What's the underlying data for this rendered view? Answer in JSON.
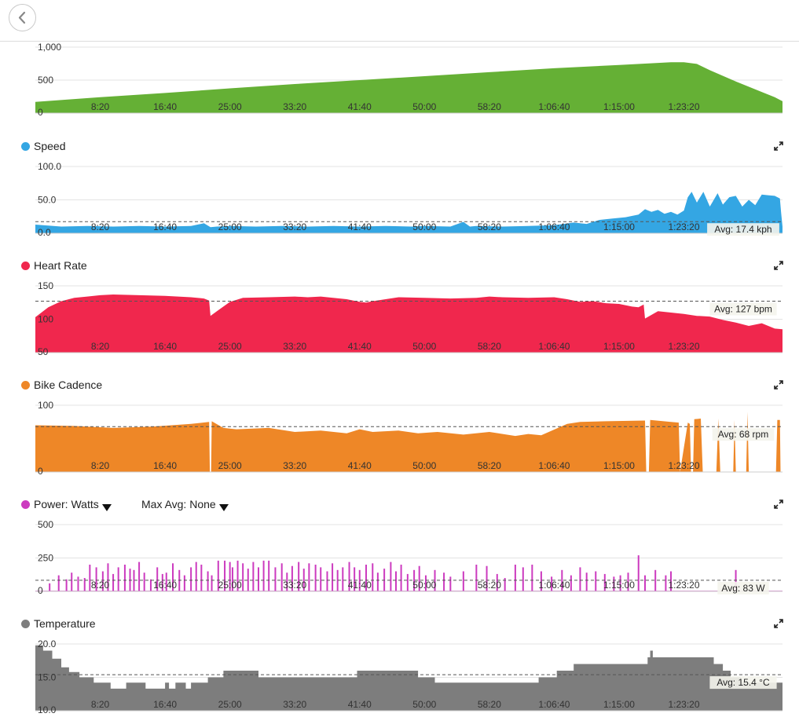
{
  "nav": {
    "back_icon": "chevron-left-icon"
  },
  "x_tick_labels": [
    "8:20",
    "16:40",
    "25:00",
    "33:20",
    "41:40",
    "50:00",
    "58:20",
    "1:06:40",
    "1:15:00",
    "1:23:20"
  ],
  "panels": {
    "elevation": {
      "expand_icon": ""
    },
    "speed": {
      "title": "Speed",
      "color": "#34a6e3",
      "expand_icon": "expand-icon"
    },
    "heart_rate": {
      "title": "Heart Rate",
      "color": "#f0274d",
      "expand_icon": "expand-icon"
    },
    "cadence": {
      "title": "Bike Cadence",
      "color": "#ee8727",
      "expand_icon": "expand-icon"
    },
    "power": {
      "title": "Power: Watts",
      "max_avg": "Max Avg: None",
      "color": "#cc3bbf",
      "expand_icon": "expand-icon"
    },
    "temperature": {
      "title": "Temperature",
      "color": "#7d7d7d",
      "expand_icon": "expand-icon"
    }
  },
  "chart_data": [
    {
      "id": "elevation",
      "type": "area",
      "color": "#65b035",
      "title": "",
      "xlabel": "",
      "ylabel": "",
      "x_unit": "seconds",
      "xlim": [
        0,
        5760
      ],
      "ylim": [
        0,
        1000
      ],
      "y_ticks": [
        "0",
        "500",
        "1,000"
      ],
      "x_tick_values": [
        500,
        1000,
        1500,
        2000,
        2500,
        3000,
        3500,
        4000,
        4500,
        5000
      ],
      "x_tick_labels": [
        "8:20",
        "16:40",
        "25:00",
        "33:20",
        "41:40",
        "50:00",
        "58:20",
        "1:06:40",
        "1:15:00",
        "1:23:20"
      ],
      "avg": null,
      "avg_label": "",
      "x": [
        0,
        500,
        1000,
        1500,
        2000,
        2500,
        3000,
        3500,
        4000,
        4500,
        4700,
        4900,
        5000,
        5100,
        5200,
        5400,
        5600,
        5700,
        5760
      ],
      "y": [
        170,
        240,
        305,
        375,
        440,
        500,
        560,
        620,
        680,
        730,
        750,
        770,
        770,
        745,
        650,
        480,
        320,
        240,
        180
      ]
    },
    {
      "id": "speed",
      "type": "area",
      "color": "#34a6e3",
      "title": "Speed",
      "xlabel": "",
      "ylabel": "",
      "x_unit": "seconds",
      "xlim": [
        0,
        5760
      ],
      "ylim": [
        0,
        100
      ],
      "y_ticks": [
        "0.0",
        "50.0",
        "100.0"
      ],
      "x_tick_values": [
        500,
        1000,
        1500,
        2000,
        2500,
        3000,
        3500,
        4000,
        4500,
        5000
      ],
      "x_tick_labels": [
        "8:20",
        "16:40",
        "25:00",
        "33:20",
        "41:40",
        "50:00",
        "58:20",
        "1:06:40",
        "1:15:00",
        "1:23:20"
      ],
      "avg": 17.4,
      "avg_label": "Avg: 17.4 kph",
      "x": [
        0,
        200,
        400,
        600,
        800,
        1000,
        1200,
        1300,
        1350,
        1400,
        1500,
        1700,
        1900,
        2100,
        2300,
        2500,
        2700,
        2900,
        3000,
        3200,
        3300,
        3350,
        3400,
        3600,
        3800,
        4000,
        4150,
        4250,
        4350,
        4450,
        4550,
        4650,
        4700,
        4750,
        4800,
        4850,
        4900,
        4950,
        5000,
        5030,
        5060,
        5100,
        5150,
        5200,
        5230,
        5260,
        5300,
        5350,
        5400,
        5450,
        5500,
        5550,
        5600,
        5650,
        5700,
        5740,
        5750,
        5760
      ],
      "y": [
        13,
        10,
        11,
        10,
        11,
        10,
        11,
        15,
        9,
        10,
        11,
        10,
        11,
        10,
        11,
        10,
        11,
        10,
        11,
        10,
        17,
        10,
        11,
        10,
        11,
        12,
        16,
        14,
        20,
        22,
        24,
        28,
        36,
        32,
        35,
        29,
        32,
        28,
        34,
        54,
        62,
        46,
        62,
        40,
        50,
        60,
        43,
        54,
        56,
        40,
        50,
        42,
        58,
        57,
        56,
        52,
        30,
        10
      ]
    },
    {
      "id": "heart_rate",
      "type": "area",
      "color": "#f0274d",
      "title": "Heart Rate",
      "xlabel": "",
      "ylabel": "",
      "x_unit": "seconds",
      "xlim": [
        0,
        5760
      ],
      "ylim": [
        50,
        150
      ],
      "y_ticks": [
        "50",
        "100",
        "150"
      ],
      "x_tick_values": [
        500,
        1000,
        1500,
        2000,
        2500,
        3000,
        3500,
        4000,
        4500,
        5000
      ],
      "x_tick_labels": [
        "8:20",
        "16:40",
        "25:00",
        "33:20",
        "41:40",
        "50:00",
        "58:20",
        "1:06:40",
        "1:15:00",
        "1:23:20"
      ],
      "avg": 127,
      "avg_label": "Avg: 127 bpm",
      "x": [
        0,
        100,
        200,
        300,
        400,
        500,
        600,
        800,
        1000,
        1100,
        1200,
        1300,
        1340,
        1350,
        1400,
        1500,
        1600,
        1800,
        2000,
        2100,
        2200,
        2400,
        2500,
        2550,
        2600,
        2700,
        2800,
        3000,
        3200,
        3400,
        3500,
        3600,
        3800,
        4000,
        4100,
        4200,
        4300,
        4400,
        4500,
        4600,
        4650,
        4690,
        4700,
        4800,
        4900,
        5000,
        5100,
        5200,
        5300,
        5400,
        5500,
        5600,
        5700,
        5760
      ],
      "y": [
        103,
        118,
        127,
        132,
        134,
        136,
        137,
        136,
        135,
        134,
        133,
        131,
        128,
        105,
        112,
        126,
        132,
        133,
        134,
        133,
        134,
        130,
        126,
        125,
        127,
        130,
        133,
        132,
        131,
        132,
        134,
        133,
        132,
        133,
        130,
        126,
        127,
        124,
        123,
        119,
        118,
        122,
        101,
        112,
        110,
        108,
        105,
        104,
        99,
        95,
        90,
        94,
        86,
        85
      ]
    },
    {
      "id": "cadence",
      "type": "area",
      "color": "#ee8727",
      "title": "Bike Cadence",
      "xlabel": "",
      "ylabel": "",
      "x_unit": "seconds",
      "xlim": [
        0,
        5760
      ],
      "ylim": [
        0,
        100
      ],
      "y_ticks": [
        "0",
        "100"
      ],
      "x_tick_values": [
        500,
        1000,
        1500,
        2000,
        2500,
        3000,
        3500,
        4000,
        4500,
        5000
      ],
      "x_tick_labels": [
        "8:20",
        "16:40",
        "25:00",
        "33:20",
        "41:40",
        "50:00",
        "58:20",
        "1:06:40",
        "1:15:00",
        "1:23:20"
      ],
      "avg": 68,
      "avg_label": "Avg: 68 rpm",
      "x": [
        0,
        300,
        600,
        900,
        1200,
        1340,
        1345,
        1355,
        1360,
        1450,
        1550,
        1800,
        2000,
        2200,
        2400,
        2500,
        2600,
        2800,
        2950,
        3100,
        3300,
        3500,
        3700,
        3800,
        3900,
        4100,
        4200,
        4400,
        4700,
        4710,
        4730,
        4740,
        4900,
        4960,
        4970,
        5030,
        5045,
        5055,
        5070,
        5080,
        5130,
        5145,
        5160,
        5250,
        5265,
        5280,
        5380,
        5390,
        5400,
        5480,
        5490,
        5500,
        5700,
        5710,
        5720,
        5740,
        5745,
        5760
      ],
      "y": [
        70,
        69,
        66,
        68,
        72,
        75,
        0,
        0,
        76,
        66,
        64,
        66,
        60,
        62,
        58,
        64,
        60,
        62,
        58,
        60,
        56,
        60,
        54,
        57,
        55,
        72,
        75,
        76,
        77,
        0,
        0,
        78,
        75,
        74,
        0,
        74,
        72,
        0,
        0,
        79,
        80,
        0,
        0,
        0,
        80,
        0,
        0,
        78,
        0,
        0,
        90,
        0,
        0,
        0,
        78,
        78,
        0,
        0
      ]
    },
    {
      "id": "power",
      "type": "area",
      "color": "#cc3bbf",
      "title": "Power: Watts",
      "xlabel": "",
      "ylabel": "",
      "x_unit": "seconds",
      "xlim": [
        0,
        5760
      ],
      "ylim": [
        0,
        500
      ],
      "y_ticks": [
        "0",
        "250",
        "500"
      ],
      "x_tick_values": [
        500,
        1000,
        1500,
        2000,
        2500,
        3000,
        3500,
        4000,
        4500,
        5000
      ],
      "x_tick_labels": [
        "8:20",
        "16:40",
        "25:00",
        "33:20",
        "41:40",
        "50:00",
        "58:20",
        "1:06:40",
        "1:15:00",
        "1:23:20"
      ],
      "avg": 83,
      "avg_label": "Avg: 83 W",
      "spikes_x": [
        110,
        180,
        240,
        280,
        330,
        380,
        420,
        470,
        520,
        560,
        600,
        640,
        690,
        730,
        760,
        800,
        840,
        890,
        940,
        980,
        1010,
        1060,
        1110,
        1150,
        1200,
        1240,
        1280,
        1330,
        1360,
        1410,
        1460,
        1500,
        1520,
        1560,
        1600,
        1640,
        1680,
        1720,
        1760,
        1800,
        1850,
        1900,
        1940,
        1980,
        2030,
        2070,
        2110,
        2160,
        2200,
        2250,
        2290,
        2330,
        2370,
        2420,
        2460,
        2500,
        2550,
        2600,
        2640,
        2690,
        2740,
        2780,
        2820,
        2870,
        2920,
        2960,
        3010,
        3080,
        3150,
        3200,
        3300,
        3400,
        3480,
        3560,
        3620,
        3700,
        3760,
        3830,
        3900,
        3980,
        4060,
        4130,
        4200,
        4250,
        4320,
        4390,
        4460,
        4510,
        4570,
        4650,
        4700,
        4780,
        4860,
        4900,
        5400
      ],
      "spikes_y": [
        60,
        120,
        90,
        140,
        110,
        100,
        200,
        180,
        150,
        210,
        130,
        180,
        200,
        170,
        160,
        220,
        140,
        90,
        180,
        130,
        140,
        210,
        160,
        120,
        180,
        220,
        200,
        150,
        120,
        230,
        230,
        220,
        180,
        230,
        210,
        170,
        220,
        180,
        230,
        230,
        180,
        210,
        140,
        190,
        220,
        170,
        210,
        200,
        180,
        150,
        210,
        160,
        180,
        220,
        180,
        160,
        200,
        210,
        140,
        170,
        220,
        150,
        200,
        130,
        160,
        190,
        120,
        160,
        140,
        110,
        150,
        200,
        190,
        130,
        100,
        200,
        180,
        200,
        150,
        110,
        160,
        120,
        180,
        140,
        150,
        130,
        110,
        120,
        140,
        270,
        120,
        160,
        120,
        150,
        160
      ]
    },
    {
      "id": "temperature",
      "type": "area",
      "color": "#7d7d7d",
      "title": "Temperature",
      "xlabel": "",
      "ylabel": "",
      "x_unit": "seconds",
      "xlim": [
        0,
        5760
      ],
      "ylim": [
        10,
        20
      ],
      "y_ticks": [
        "10.0",
        "15.0",
        "20.0"
      ],
      "x_tick_values": [
        500,
        1000,
        1500,
        2000,
        2500,
        3000,
        3500,
        4000,
        4500,
        5000
      ],
      "x_tick_labels": [
        "8:20",
        "16:40",
        "25:00",
        "33:20",
        "41:40",
        "50:00",
        "58:20",
        "1:06:40",
        "1:15:00",
        "1:23:20"
      ],
      "avg": 15.4,
      "avg_label": "Avg: 15.4 °C",
      "steps_x": [
        0,
        60,
        130,
        200,
        260,
        340,
        450,
        580,
        700,
        850,
        1000,
        1030,
        1080,
        1160,
        1200,
        1330,
        1450,
        1720,
        1760,
        2350,
        2450,
        2480,
        2950,
        3080,
        3130,
        3300,
        3550,
        3880,
        4020,
        4150,
        4720,
        4740,
        4760,
        5230,
        5300,
        5340,
        5360,
        5440,
        5600,
        5760
      ],
      "steps_y": [
        19.8,
        19.0,
        17.8,
        16.5,
        15.8,
        15.0,
        14.2,
        13.3,
        14.2,
        13.3,
        14.2,
        13.3,
        14.2,
        13.3,
        14.2,
        15.0,
        16.0,
        15.0,
        15.0,
        15.0,
        15.0,
        16.0,
        15.0,
        14.2,
        14.2,
        14.2,
        14.2,
        15.0,
        16.0,
        17.0,
        18.0,
        19.0,
        18.0,
        17.0,
        16.0,
        16.0,
        15.0,
        14.2,
        14.2,
        14.2
      ]
    }
  ]
}
